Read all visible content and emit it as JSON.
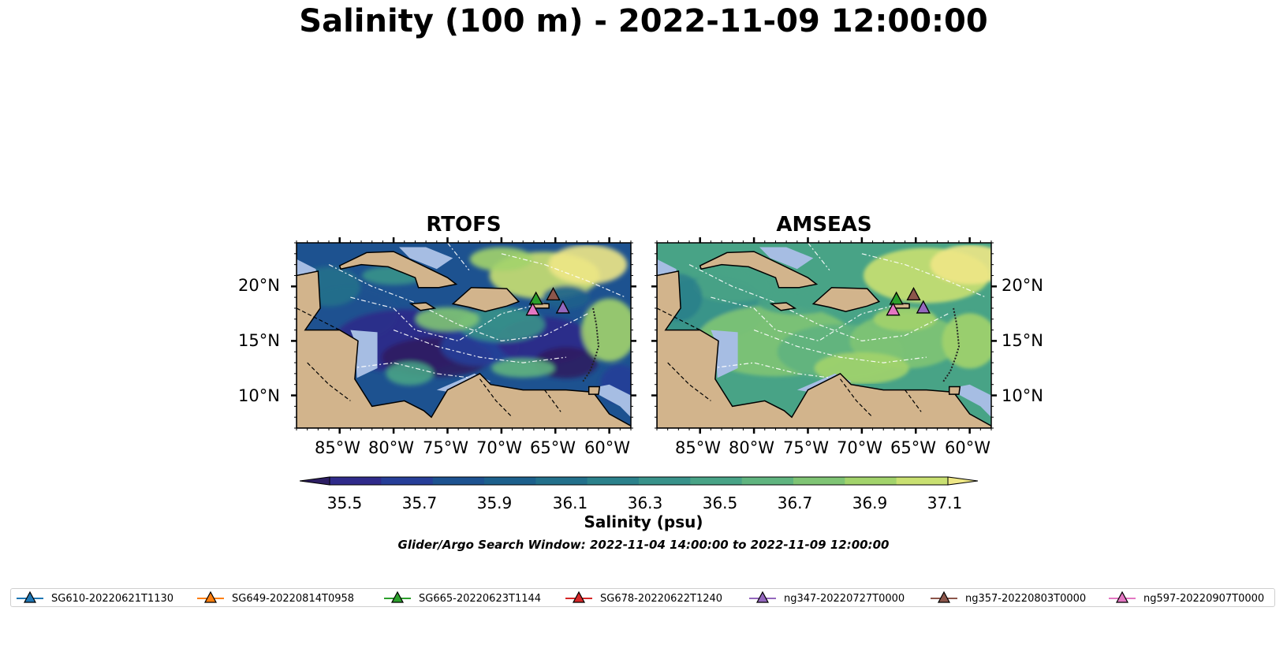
{
  "title": "Salinity (100 m) - 2022-11-09 12:00:00",
  "panels": [
    {
      "title": "RTOFS",
      "model": "rtofs"
    },
    {
      "title": "AMSEAS",
      "model": "amseas"
    }
  ],
  "map": {
    "lon_range": [
      -89,
      -58
    ],
    "lat_range": [
      7,
      24
    ],
    "lon_ticks": [
      {
        "value": -85,
        "label": "85°W"
      },
      {
        "value": -80,
        "label": "80°W"
      },
      {
        "value": -75,
        "label": "75°W"
      },
      {
        "value": -70,
        "label": "70°W"
      },
      {
        "value": -65,
        "label": "65°W"
      },
      {
        "value": -60,
        "label": "60°W"
      }
    ],
    "lat_ticks": [
      {
        "value": 20,
        "label": "20°N"
      },
      {
        "value": 15,
        "label": "15°N"
      },
      {
        "value": 10,
        "label": "10°N"
      }
    ],
    "land_color": "#d2b48c",
    "shallow_water_color": "#a6bde3"
  },
  "colorbar": {
    "label": "Salinity (psu)",
    "min": 35.4,
    "max": 37.2,
    "ticks": [
      "35.5",
      "35.7",
      "35.9",
      "36.1",
      "36.3",
      "36.5",
      "36.7",
      "36.9",
      "37.1"
    ],
    "colors": [
      "#2d1e63",
      "#2f2a8a",
      "#263e98",
      "#1d5290",
      "#1c608c",
      "#22708b",
      "#2b818b",
      "#38928a",
      "#48a386",
      "#5fb47f",
      "#7fc474",
      "#a2d36b",
      "#c9e071",
      "#eee786"
    ]
  },
  "search_window": "Glider/Argo Search Window: 2022-11-04 14:00:00 to 2022-11-09 12:00:00",
  "gliders": [
    {
      "name": "SG610-20220621T1130",
      "color": "#1f77b4"
    },
    {
      "name": "SG649-20220814T0958",
      "color": "#ff7f0e"
    },
    {
      "name": "SG665-20220623T1144",
      "color": "#2ca02c",
      "lon": -66.8,
      "lat": 18.8
    },
    {
      "name": "SG678-20220622T1240",
      "color": "#d62728"
    },
    {
      "name": "ng347-20220727T0000",
      "color": "#9467bd",
      "lon": -64.3,
      "lat": 18.0
    },
    {
      "name": "ng357-20220803T0000",
      "color": "#8c564b",
      "lon": -65.2,
      "lat": 19.2
    },
    {
      "name": "ng597-20220907T0000",
      "color": "#e377c2",
      "lon": -67.1,
      "lat": 17.8
    }
  ]
}
